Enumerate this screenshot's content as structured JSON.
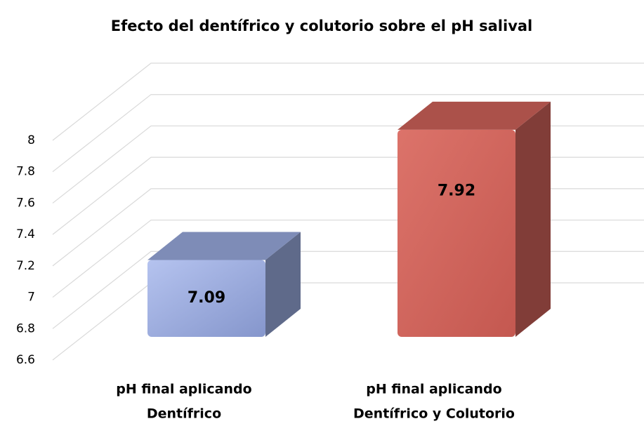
{
  "chart_data": {
    "type": "bar3d",
    "title": "Efecto del dentífrico y colutorio sobre el pH salival",
    "categories": [
      [
        "pH final aplicando",
        "Dentífrico"
      ],
      [
        "pH final aplicando",
        "Dentífrico y Colutorio"
      ]
    ],
    "values": [
      7.09,
      7.92
    ],
    "colors": [
      "#9aabdf",
      "#d0635a"
    ],
    "ylim": [
      6.6,
      8
    ],
    "yticks": [
      6.6,
      6.8,
      7,
      7.2,
      7.4,
      7.6,
      7.8,
      8
    ],
    "grid": true
  }
}
